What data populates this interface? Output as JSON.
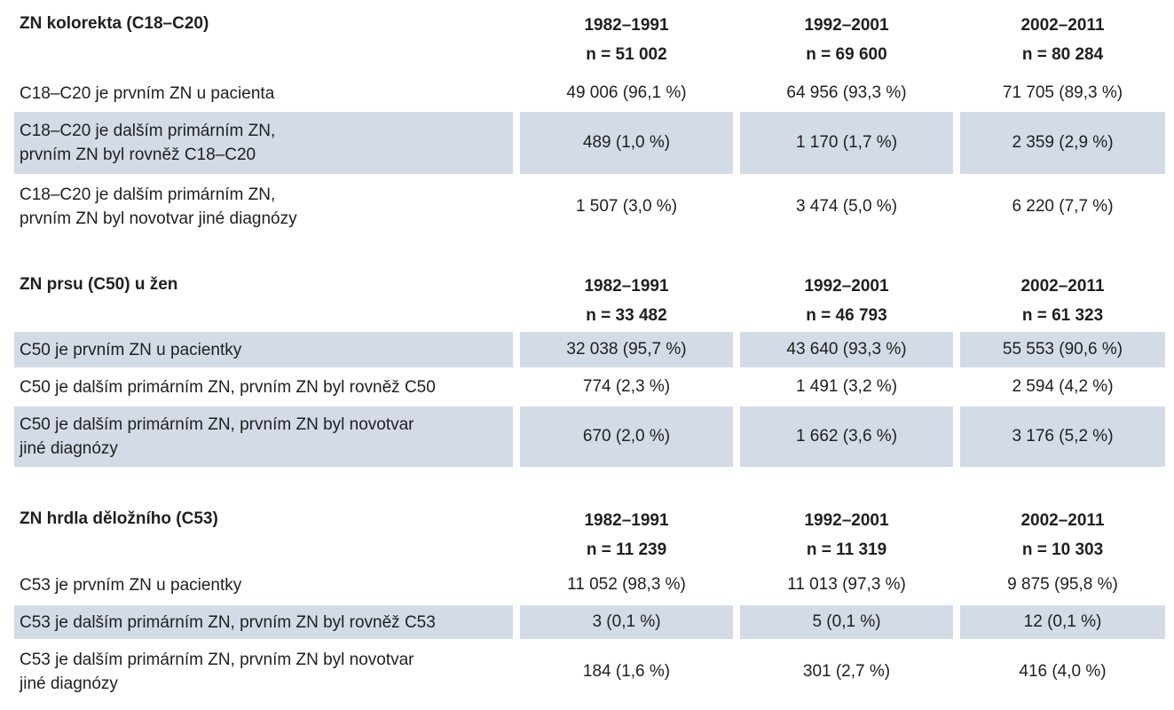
{
  "sections": [
    {
      "title": "ZN kolorekta (C18–C20)",
      "periods": [
        {
          "label": "1982–1991",
          "n": "n = 51 002"
        },
        {
          "label": "1992–2001",
          "n": "n = 69 600"
        },
        {
          "label": "2002–2011",
          "n": "n = 80 284"
        }
      ],
      "rows": [
        {
          "label": [
            "C18–C20 je prvním ZN u pacienta"
          ],
          "values": [
            "49 006 (96,1 %)",
            "64 956 (93,3 %)",
            "71 705 (89,3 %)"
          ],
          "shaded": false
        },
        {
          "label": [
            "C18–C20 je dalším primárním ZN,",
            "prvním ZN byl rovněž C18–C20"
          ],
          "values": [
            "489 (1,0 %)",
            "1 170 (1,7 %)",
            "2 359 (2,9 %)"
          ],
          "shaded": true
        },
        {
          "label": [
            "C18–C20 je dalším primárním ZN,",
            "prvním ZN byl novotvar jiné diagnózy"
          ],
          "values": [
            "1 507 (3,0 %)",
            "3 474 (5,0 %)",
            "6 220 (7,7 %)"
          ],
          "shaded": false
        }
      ]
    },
    {
      "title": "ZN prsu (C50) u žen",
      "periods": [
        {
          "label": "1982–1991",
          "n": "n = 33 482"
        },
        {
          "label": "1992–2001",
          "n": "n = 46 793"
        },
        {
          "label": "2002–2011",
          "n": "n = 61 323"
        }
      ],
      "rows": [
        {
          "label": [
            "C50 je prvním ZN u pacientky"
          ],
          "values": [
            "32 038 (95,7 %)",
            "43 640 (93,3 %)",
            "55 553 (90,6 %)"
          ],
          "shaded": true
        },
        {
          "label": [
            "C50 je dalším primárním ZN, prvním ZN byl rovněž C50"
          ],
          "values": [
            "774 (2,3 %)",
            "1 491 (3,2 %)",
            "2 594 (4,2 %)"
          ],
          "shaded": false
        },
        {
          "label": [
            "C50 je dalším primárním ZN, prvním ZN byl novotvar",
            "jiné diagnózy"
          ],
          "values": [
            "670 (2,0 %)",
            "1 662 (3,6 %)",
            "3 176 (5,2 %)"
          ],
          "shaded": true
        }
      ]
    },
    {
      "title": "ZN hrdla děložního (C53)",
      "periods": [
        {
          "label": "1982–1991",
          "n": "n = 11 239"
        },
        {
          "label": "1992–2001",
          "n": "n = 11 319"
        },
        {
          "label": "2002–2011",
          "n": "n = 10 303"
        }
      ],
      "rows": [
        {
          "label": [
            "C53 je prvním ZN u pacientky"
          ],
          "values": [
            "11 052 (98,3 %)",
            "11 013 (97,3 %)",
            "9 875 (95,8 %)"
          ],
          "shaded": false
        },
        {
          "label": [
            "C53 je dalším primárním ZN, prvním ZN byl rovněž C53"
          ],
          "values": [
            "3 (0,1 %)",
            "5 (0,1 %)",
            "12 (0,1 %)"
          ],
          "shaded": true
        },
        {
          "label": [
            "C53 je dalším primárním ZN, prvním ZN byl novotvar",
            "jiné diagnózy"
          ],
          "values": [
            "184 (1,6 %)",
            "301 (2,7 %)",
            "416 (4,0 %)"
          ],
          "shaded": false
        }
      ]
    }
  ]
}
